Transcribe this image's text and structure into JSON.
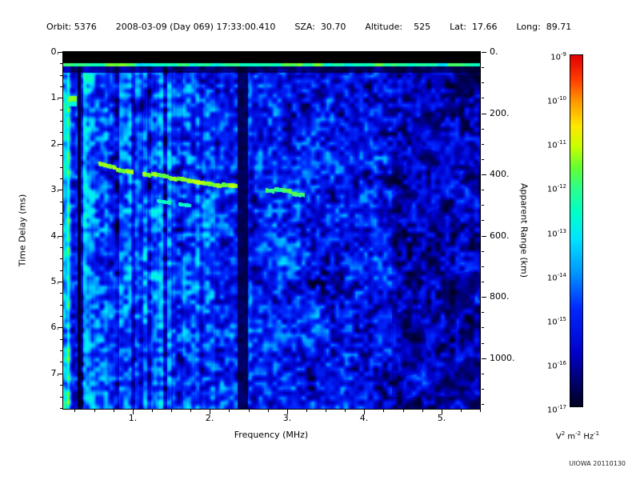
{
  "header": {
    "segments": [
      "Orbit: 5376",
      "2008-03-09 (Day 069) 17:33:00.410",
      "SZA:  30.70",
      "Altitude:    525",
      "Lat:  17.66",
      "Long:  89.71"
    ]
  },
  "footer": {
    "credit": "UIOWA 20110130"
  },
  "chart_data": {
    "type": "heatmap",
    "description": "Radar sounder ionogram: received spectral density vs frequency and time delay",
    "x_axis": {
      "label": "Frequency (MHz)",
      "min": 0.1,
      "max": 5.5,
      "major_ticks": [
        1,
        2,
        3,
        4,
        5
      ],
      "major_tick_labels": [
        "1.",
        "2.",
        "3.",
        "4.",
        "5."
      ],
      "minor_tick_step": 0.25
    },
    "y_left": {
      "label": "Time Delay (ms)",
      "min": 0,
      "max": 7.77,
      "major_ticks": [
        0,
        1,
        2,
        3,
        4,
        5,
        6,
        7
      ],
      "major_tick_labels": [
        "0.",
        "1.",
        "2.",
        "3.",
        "4.",
        "5.",
        "6.",
        "7."
      ],
      "minor_tick_step": 0.25
    },
    "y_right": {
      "label": "Apparent Range (km)",
      "major_ticks": [
        0,
        200,
        400,
        600,
        800,
        1000
      ],
      "major_tick_labels": [
        "0.",
        "200.",
        "400.",
        "600.",
        "800.",
        "1000."
      ],
      "minor_tick_step": 50,
      "km_per_ms": 150
    },
    "colorbar": {
      "mantissa": "10",
      "tick_exponents": [
        "-9",
        "-10",
        "-11",
        "-12",
        "-13",
        "-14",
        "-15",
        "-16",
        "-17"
      ],
      "units_parts": [
        {
          "base": "V",
          "exp": "2"
        },
        {
          "base": " m",
          "exp": "-2"
        },
        {
          "base": " Hz",
          "exp": "-1"
        }
      ],
      "colormap": [
        {
          "pos": 0.0,
          "color": "#000020"
        },
        {
          "pos": 0.06,
          "color": "#000060"
        },
        {
          "pos": 0.15,
          "color": "#0000c8"
        },
        {
          "pos": 0.28,
          "color": "#0028ff"
        },
        {
          "pos": 0.38,
          "color": "#0096ff"
        },
        {
          "pos": 0.48,
          "color": "#00e6ff"
        },
        {
          "pos": 0.55,
          "color": "#00ffc8"
        },
        {
          "pos": 0.62,
          "color": "#2aff8c"
        },
        {
          "pos": 0.68,
          "color": "#64ff32"
        },
        {
          "pos": 0.74,
          "color": "#c8ff00"
        },
        {
          "pos": 0.8,
          "color": "#ffe600"
        },
        {
          "pos": 0.87,
          "color": "#ff9600"
        },
        {
          "pos": 0.93,
          "color": "#ff3c00"
        },
        {
          "pos": 1.0,
          "color": "#e10000"
        }
      ]
    },
    "features": {
      "top_blanking_band_ms": [
        0,
        0.23
      ],
      "transmit_pulse_band_delay_ms": 0.3,
      "rfi_null_bands_mhz": [
        [
          0.285,
          0.325
        ],
        [
          2.35,
          2.49
        ]
      ],
      "echo_trace": {
        "points": [
          [
            0.43,
            2.36
          ],
          [
            0.55,
            2.44
          ],
          [
            0.7,
            2.5
          ],
          [
            0.9,
            2.57
          ],
          [
            1.1,
            2.63
          ],
          [
            1.35,
            2.7
          ],
          [
            1.6,
            2.77
          ],
          [
            1.9,
            2.84
          ],
          [
            2.2,
            2.9
          ],
          [
            2.5,
            2.95
          ],
          [
            2.8,
            3.0
          ],
          [
            3.0,
            3.04
          ],
          [
            3.22,
            3.1
          ]
        ]
      },
      "secondary_trace": {
        "points": [
          [
            0.95,
            3.12
          ],
          [
            1.2,
            3.2
          ],
          [
            1.45,
            3.27
          ],
          [
            1.75,
            3.34
          ]
        ]
      },
      "low_freq_echo_blob": {
        "freq_mhz": [
          0.17,
          0.27
        ],
        "delay_ms": [
          0.95,
          1.17
        ]
      }
    }
  }
}
